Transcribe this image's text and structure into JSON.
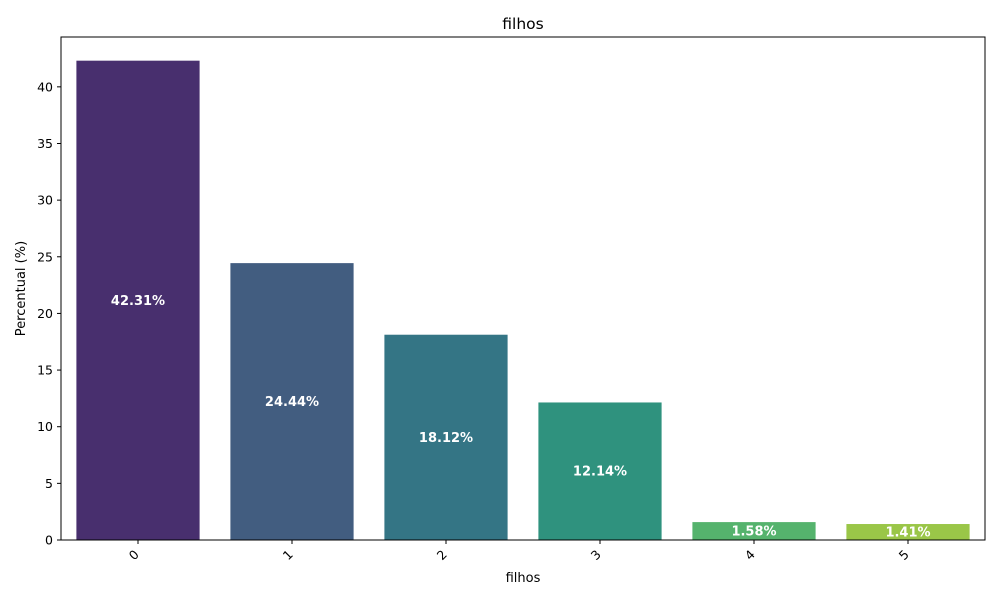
{
  "chart_data": {
    "type": "bar",
    "title": "filhos",
    "xlabel": "filhos",
    "ylabel": "Percentual (%)",
    "categories": [
      "0",
      "1",
      "2",
      "3",
      "4",
      "5"
    ],
    "values": [
      42.31,
      24.44,
      18.12,
      12.14,
      1.58,
      1.41
    ],
    "data_labels": [
      "42.31%",
      "24.44%",
      "18.12%",
      "12.14%",
      "1.58%",
      "1.41%"
    ],
    "colors": [
      "#482f6e",
      "#425d80",
      "#347585",
      "#2f927e",
      "#55b36d",
      "#9ac648"
    ],
    "yticks": [
      0,
      5,
      10,
      15,
      20,
      25,
      30,
      35,
      40
    ],
    "ylim": [
      0,
      44.4
    ],
    "grid": false,
    "legend": "none",
    "xtick_rotation": 45
  }
}
